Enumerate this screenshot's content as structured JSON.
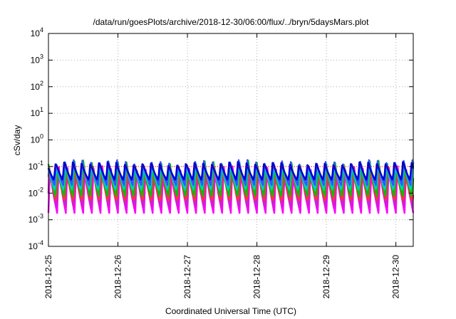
{
  "chart_data": {
    "type": "line",
    "title": "/data/run/goesPlots/archive/2018-12-30/06:00/flux/../bryn/5daysMars.plot",
    "xlabel": "Coordinated Universal Time (UTC)",
    "ylabel": "cSv/day",
    "yscale": "log",
    "ylim": [
      0.0001,
      10000
    ],
    "xlim": [
      "2018-12-25T00:00",
      "2018-12-30T06:00"
    ],
    "x_ticks": [
      "2018-12-25",
      "2018-12-26",
      "2018-12-27",
      "2018-12-28",
      "2018-12-29",
      "2018-12-30"
    ],
    "y_ticks": [
      {
        "base": "10",
        "exp": "-4"
      },
      {
        "base": "10",
        "exp": "-3"
      },
      {
        "base": "10",
        "exp": "-2"
      },
      {
        "base": "10",
        "exp": "-1"
      },
      {
        "base": "10",
        "exp": "0"
      },
      {
        "base": "10",
        "exp": "1"
      },
      {
        "base": "10",
        "exp": "2"
      },
      {
        "base": "10",
        "exp": "3"
      },
      {
        "base": "10",
        "exp": "4"
      }
    ],
    "grid": true,
    "reference_line": {
      "value": 0.1,
      "color": "#ff0000"
    },
    "cycle_hours": 3,
    "series": [
      {
        "color": "#ff00ff",
        "peak": 0.085,
        "trough": 0.0018
      },
      {
        "color": "#cc22cc",
        "peak": 0.095,
        "trough": 0.0028
      },
      {
        "color": "#ff3333",
        "peak": 0.1,
        "trough": 0.0045
      },
      {
        "color": "#00c000",
        "peak": 0.12,
        "trough": 0.0075
      },
      {
        "color": "#00cccc",
        "peak": 0.14,
        "trough": 0.012
      },
      {
        "color": "#3355ff",
        "peak": 0.16,
        "trough": 0.02
      },
      {
        "color": "#0000cc",
        "peak": 0.15,
        "trough": 0.03
      }
    ]
  }
}
